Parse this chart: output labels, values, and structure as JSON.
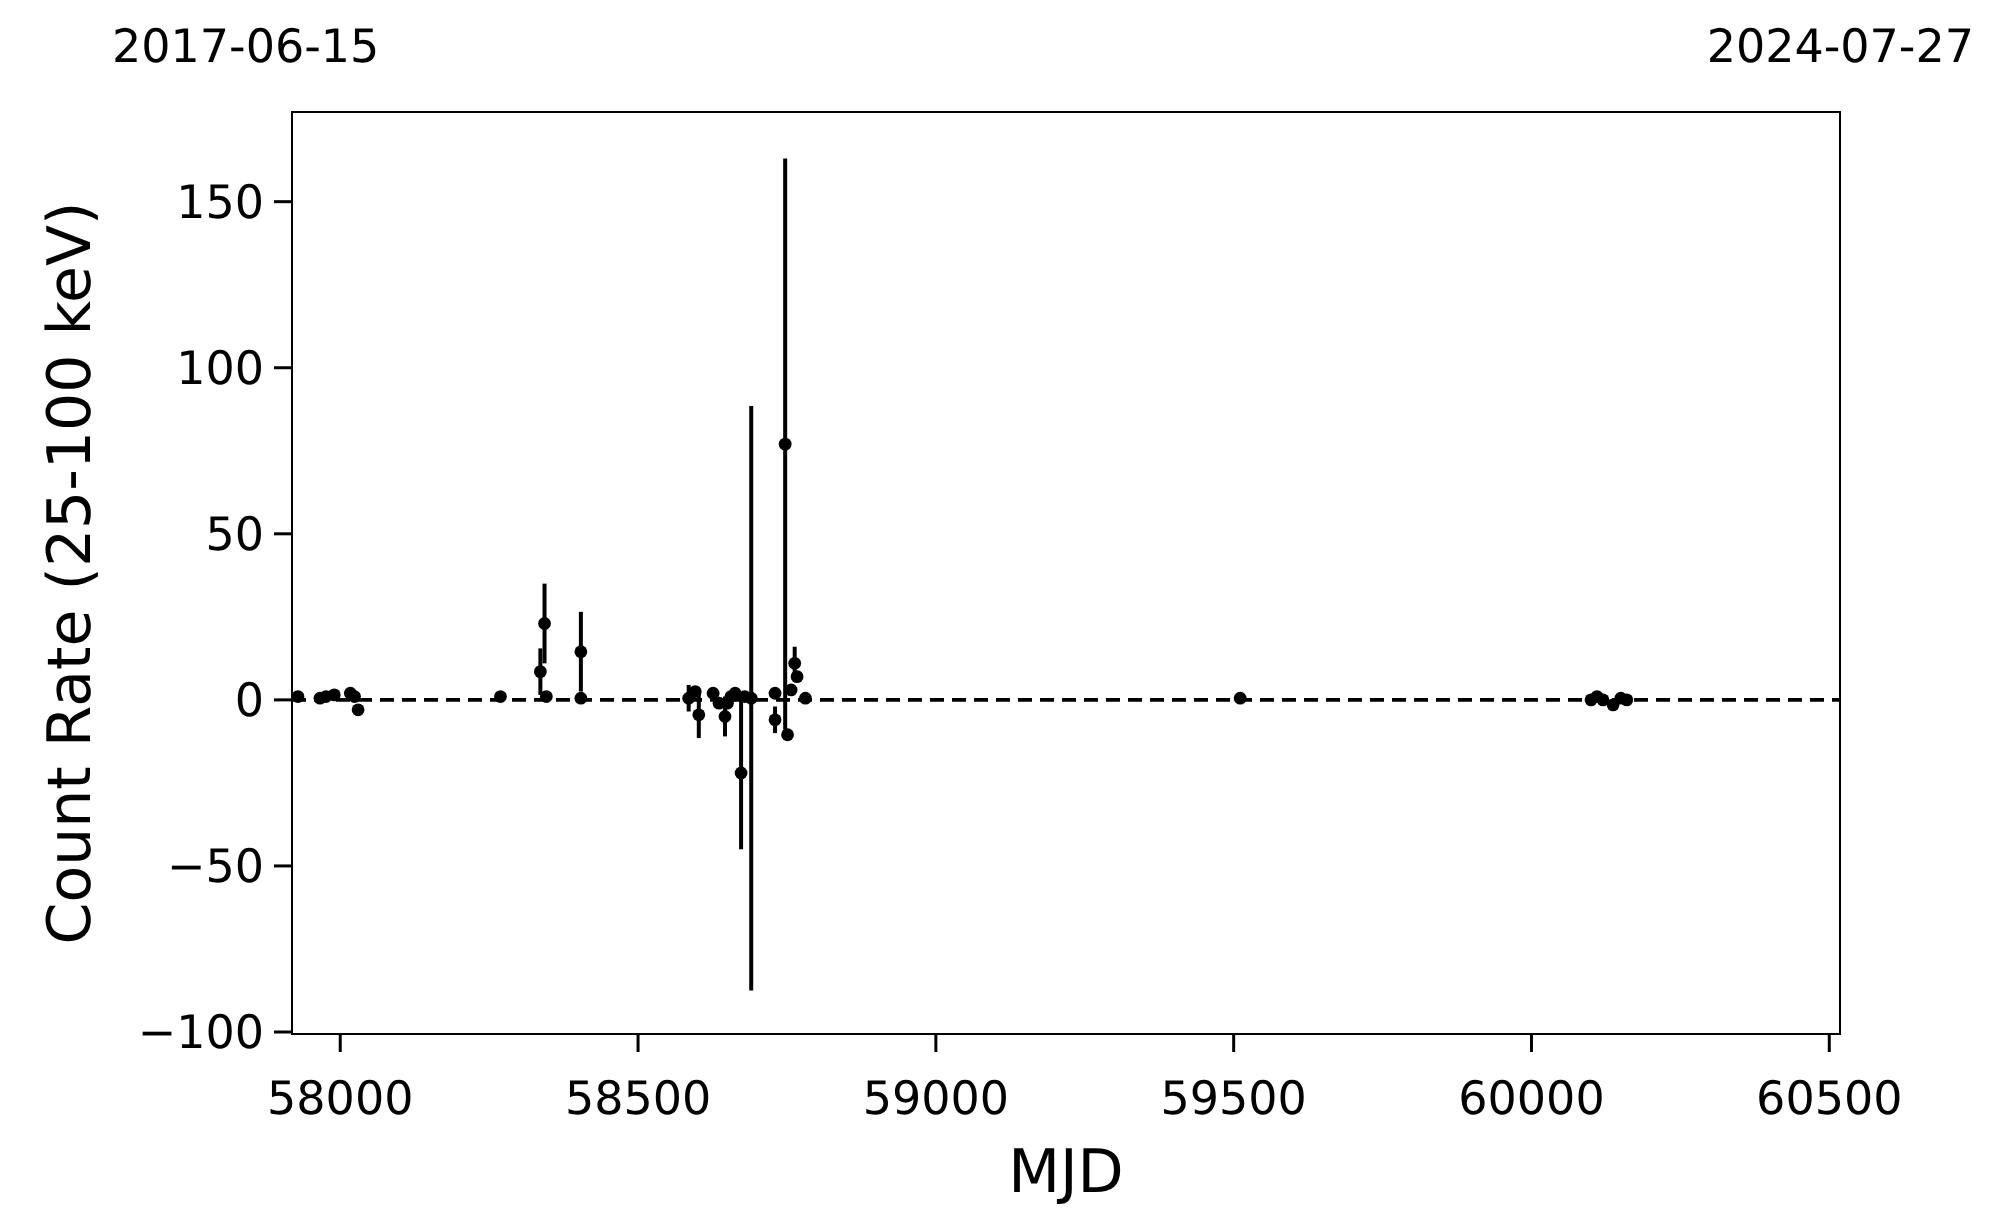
{
  "chart_data": {
    "type": "scatter",
    "xlabel": "MJD",
    "ylabel": "Count Rate (25-100 keV)",
    "annotations": [
      "2017-06-15",
      "2024-07-27"
    ],
    "x": [
      57929,
      57966,
      57976,
      57990,
      58017,
      58024,
      58030,
      58269,
      58336,
      58343,
      58346,
      58404,
      58404,
      58585,
      58596,
      58602,
      58626,
      58636,
      58646,
      58650,
      58656,
      58663,
      58673,
      58679,
      58690,
      58730,
      58730,
      58747,
      58751,
      58757,
      58763,
      58767,
      58781,
      59511,
      60100,
      60110,
      60120,
      60137,
      60150,
      60160
    ],
    "series": [
      {
        "color": "#000000",
        "values": [
          1,
          0.5,
          1,
          1.5,
          2,
          1,
          -3,
          1,
          8.5,
          23,
          1,
          14.5,
          0.5,
          0.5,
          2.5,
          -4.5,
          2,
          -1,
          -5,
          -1,
          1,
          2,
          -22,
          1,
          0.5,
          2,
          -6,
          77,
          -10.5,
          3,
          11,
          7,
          0.5,
          0.5,
          0,
          1,
          0,
          -1.5,
          0.5,
          0
        ],
        "errors": [
          1,
          1,
          1,
          1,
          1,
          1,
          1,
          1,
          7,
          12,
          1,
          12,
          1,
          4,
          1,
          7,
          1,
          1,
          6,
          1,
          1,
          1,
          23,
          1,
          88,
          1,
          4,
          86,
          1,
          1,
          5,
          1,
          1,
          1,
          1,
          1,
          1,
          1,
          1,
          1
        ]
      }
    ],
    "xlim": [
      57919,
      60518
    ],
    "xticks": [
      58000,
      58500,
      59000,
      59500,
      60000,
      60500
    ],
    "ylim": [
      -100.6,
      177
    ],
    "yticks": [
      -100,
      -50,
      0,
      50,
      100,
      150
    ],
    "ref_lines": [
      {
        "axis": "y",
        "value": 0,
        "color": "#000000",
        "line_style": "dashed"
      }
    ],
    "grid": false,
    "marker": "circle"
  }
}
